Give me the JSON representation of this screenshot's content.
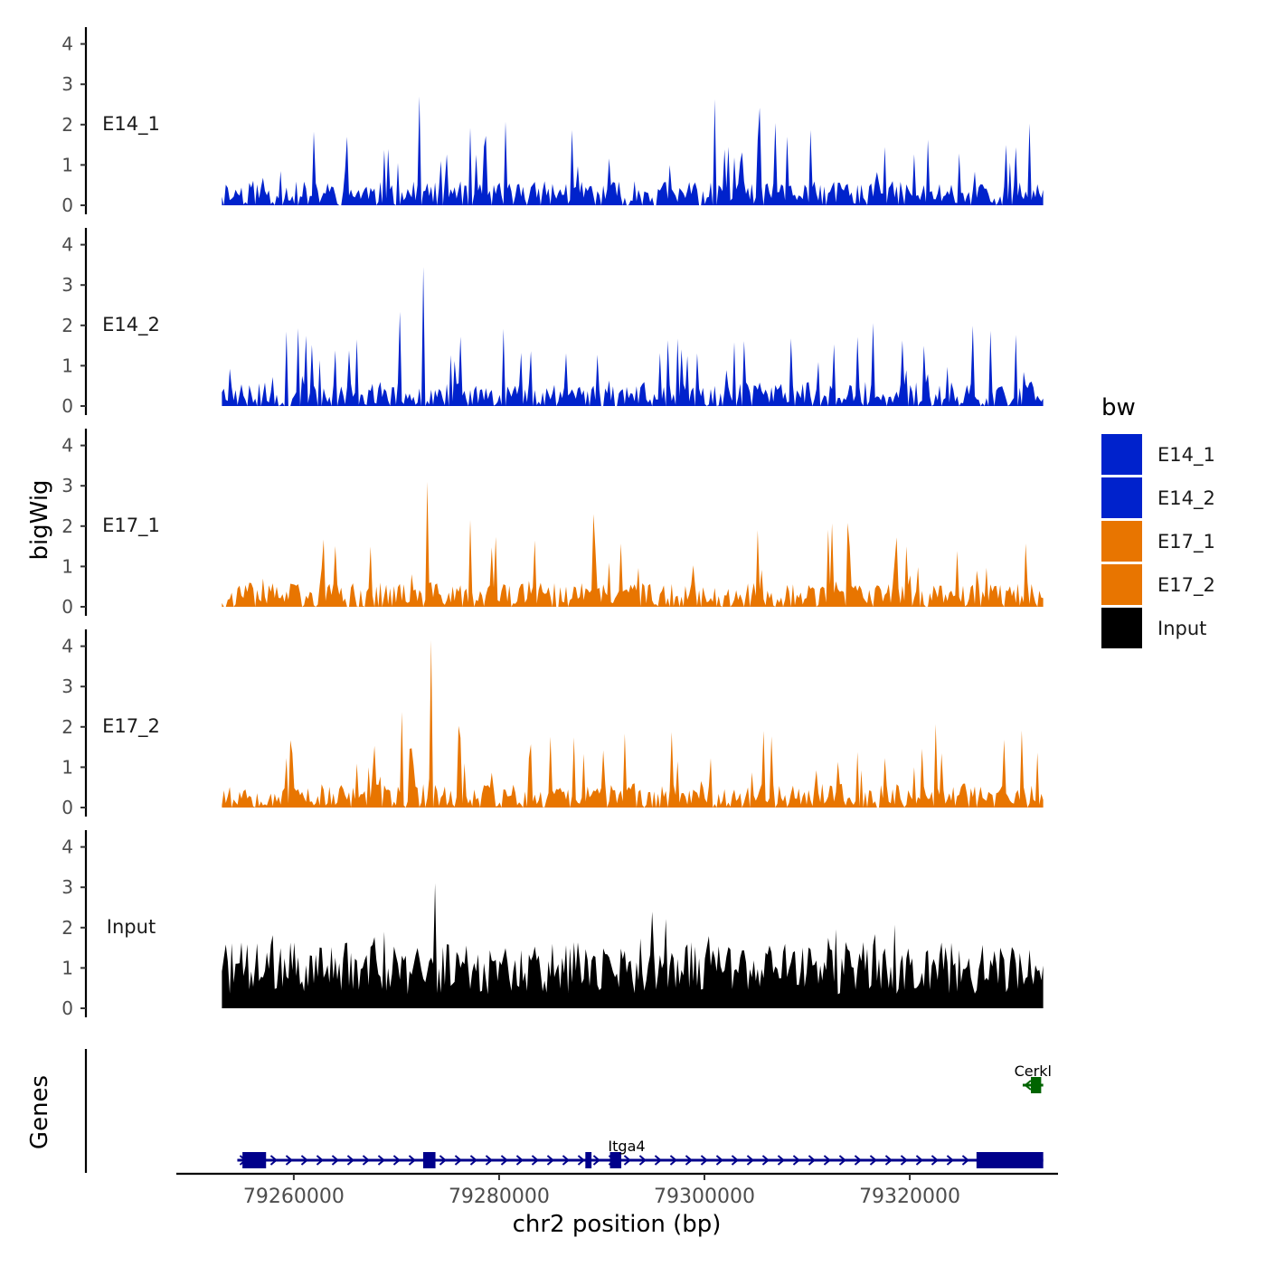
{
  "chart_data": {
    "type": "area",
    "title": "",
    "xlabel": "chr2 position (bp)",
    "ylabel": "bigWig",
    "genes_label": "Genes",
    "x_range": [
      79249000,
      79334000
    ],
    "x_ticks": [
      79260000,
      79280000,
      79300000,
      79320000
    ],
    "x_tick_labels": [
      "79260000",
      "79280000",
      "79300000",
      "79320000"
    ],
    "y_range": [
      0,
      4.2
    ],
    "y_ticks": [
      0,
      1,
      2,
      3,
      4
    ],
    "y_tick_labels": [
      "0",
      "1",
      "2",
      "3",
      "4"
    ],
    "data_x_start": 79253000,
    "data_x_end": 79333000,
    "series": [
      {
        "name": "E14_1",
        "color": "#0022cc",
        "peak": 2.7,
        "seed": 11
      },
      {
        "name": "E14_2",
        "color": "#0022cc",
        "peak": 3.45,
        "seed": 23
      },
      {
        "name": "E17_1",
        "color": "#e87500",
        "peak": 3.1,
        "seed": 37
      },
      {
        "name": "E17_2",
        "color": "#e87500",
        "peak": 4.15,
        "seed": 53
      },
      {
        "name": "Input",
        "color": "#000000",
        "peak": 3.1,
        "seed": 71
      }
    ],
    "legend": {
      "title": "bw",
      "placement": "right",
      "entries": [
        {
          "label": "E14_1",
          "color": "#0022cc"
        },
        {
          "label": "E14_2",
          "color": "#0022cc"
        },
        {
          "label": "E17_1",
          "color": "#e87500"
        },
        {
          "label": "E17_2",
          "color": "#e87500"
        },
        {
          "label": "Input",
          "color": "#000000"
        }
      ]
    },
    "genes": [
      {
        "name": "Itga4",
        "strand": "+",
        "color": "#00008b",
        "start": 79254500,
        "end": 79333000,
        "exons": [
          [
            79255000,
            79257300
          ],
          [
            79272600,
            79273800
          ],
          [
            79288400,
            79289000
          ],
          [
            79290800,
            79291900
          ],
          [
            79326500,
            79333000
          ]
        ]
      },
      {
        "name": "Cerkl",
        "strand": "-",
        "color": "#006400",
        "start": 79331000,
        "end": 79333000,
        "exons": [
          [
            79331800,
            79332800
          ]
        ]
      }
    ]
  }
}
